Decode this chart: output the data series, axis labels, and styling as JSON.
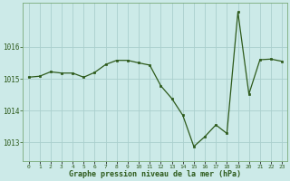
{
  "x": [
    0,
    1,
    2,
    3,
    4,
    5,
    6,
    7,
    8,
    9,
    10,
    11,
    12,
    13,
    14,
    15,
    16,
    17,
    18,
    19,
    20,
    21,
    22,
    23
  ],
  "y": [
    1015.05,
    1015.08,
    1015.22,
    1015.18,
    1015.18,
    1015.05,
    1015.2,
    1015.45,
    1015.58,
    1015.58,
    1015.5,
    1015.43,
    1014.78,
    1014.38,
    1013.85,
    1012.87,
    1013.18,
    1013.55,
    1013.28,
    1017.1,
    1014.52,
    1015.6,
    1015.62,
    1015.55
  ],
  "line_color": "#2d5a1b",
  "marker_color": "#2d5a1b",
  "bg_color": "#cceae8",
  "grid_color": "#aacfcd",
  "xlabel": "Graphe pression niveau de la mer (hPa)",
  "xlabel_color": "#2d5a1b",
  "tick_color": "#2d5a1b",
  "yticks": [
    1013,
    1014,
    1015,
    1016
  ],
  "ylim": [
    1012.4,
    1017.4
  ],
  "xlim": [
    -0.5,
    23.5
  ],
  "xtick_labels": [
    "0",
    "1",
    "2",
    "3",
    "4",
    "5",
    "6",
    "7",
    "8",
    "9",
    "10",
    "11",
    "12",
    "13",
    "14",
    "15",
    "16",
    "17",
    "18",
    "19",
    "20",
    "21",
    "22",
    "23"
  ],
  "border_color": "#7aaa7a"
}
